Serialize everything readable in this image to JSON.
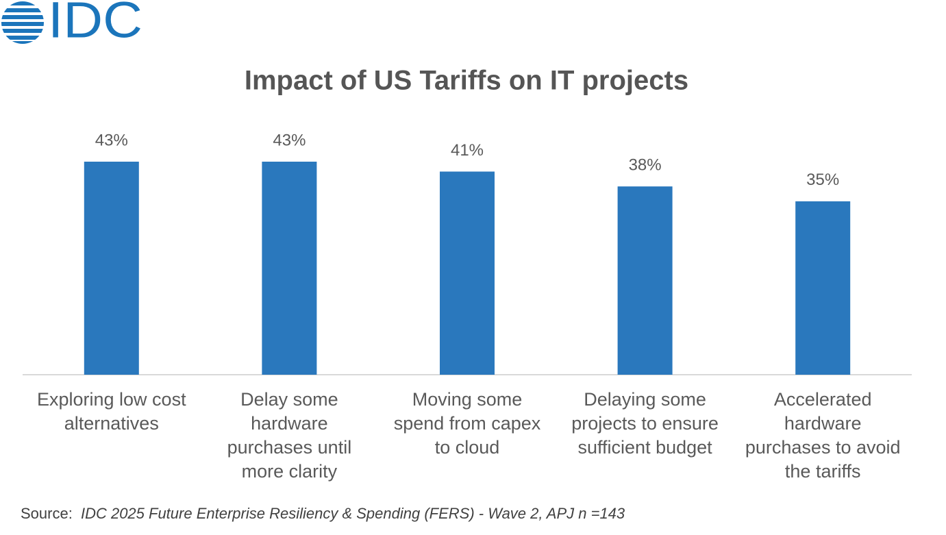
{
  "logo": "IDC",
  "chart_data": {
    "type": "bar",
    "title": "Impact of US Tariffs on IT projects",
    "categories": [
      [
        "Exploring low cost",
        "alternatives"
      ],
      [
        "Delay some",
        "hardware",
        "purchases until",
        "more clarity"
      ],
      [
        "Moving some",
        "spend from capex",
        "to cloud"
      ],
      [
        "Delaying some",
        "projects to ensure",
        "sufficient budget"
      ],
      [
        "Accelerated",
        "hardware",
        "purchases to avoid",
        "the tariffs"
      ]
    ],
    "values": [
      43,
      43,
      41,
      38,
      35
    ],
    "value_labels": [
      "43%",
      "43%",
      "41%",
      "38%",
      "35%"
    ],
    "color": "#2a78bd"
  },
  "source": {
    "label": "Source:",
    "text": "IDC 2025 Future Enterprise Resiliency & Spending (FERS) - Wave 2, APJ n =143"
  }
}
